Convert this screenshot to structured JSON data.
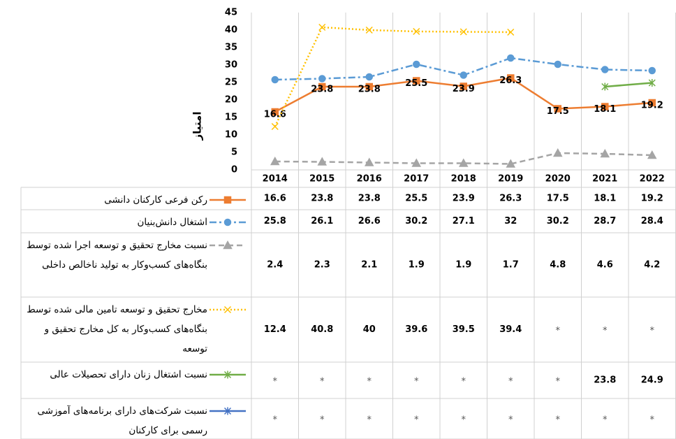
{
  "chart_data": {
    "type": "line",
    "y_label": "امتیاز",
    "categories": [
      "2014",
      "2015",
      "2016",
      "2017",
      "2018",
      "2019",
      "2020",
      "2021",
      "2022"
    ],
    "ylim": [
      0,
      45
    ],
    "yticks": [
      0,
      5,
      10,
      15,
      20,
      25,
      30,
      35,
      40,
      45
    ],
    "grid": false,
    "missing_label": "*",
    "series": [
      {
        "name": "رکن فرعی کارکنان دانشی",
        "color": "#ed7d31",
        "line_style": "solid",
        "marker": "square",
        "data_labels": true,
        "values": [
          16.6,
          23.8,
          23.8,
          25.5,
          23.9,
          26.3,
          17.5,
          18.1,
          19.2
        ]
      },
      {
        "name": "اشتغال دانش‌بنیان",
        "color": "#5b9bd5",
        "line_style": "dash-dot",
        "marker": "circle",
        "data_labels": false,
        "values": [
          25.8,
          26.1,
          26.6,
          30.2,
          27.1,
          32,
          30.2,
          28.7,
          28.4
        ]
      },
      {
        "name": "نسبت مخارج تحقیق و توسعه اجرا شده توسط بنگاه‌های کسب‌وکار به تولید ناخالص داخلی",
        "color": "#a5a5a5",
        "line_style": "dashed",
        "marker": "triangle",
        "data_labels": false,
        "values": [
          2.4,
          2.3,
          2.1,
          1.9,
          1.9,
          1.7,
          4.8,
          4.6,
          4.2
        ]
      },
      {
        "name": "مخارج تحقیق و توسعه تامین مالی شده توسط بنگاه‌های کسب‌وکار به کل مخارج تحقیق و توسعه",
        "color": "#ffc000",
        "line_style": "dotted",
        "marker": "x",
        "data_labels": false,
        "values": [
          12.4,
          40.8,
          40,
          39.6,
          39.5,
          39.4,
          null,
          null,
          null
        ]
      },
      {
        "name": "نسبت اشتغال زنان دارای تحصیلات عالی",
        "color": "#70ad47",
        "line_style": "solid",
        "marker": "star",
        "data_labels": false,
        "values": [
          null,
          null,
          null,
          null,
          null,
          null,
          null,
          23.8,
          24.9
        ]
      },
      {
        "name": "نسبت شرکت‌های دارای برنامه‌های آموزشی رسمی برای کارکنان",
        "color": "#4472c4",
        "line_style": "solid",
        "marker": "star",
        "data_labels": false,
        "values": [
          null,
          null,
          null,
          null,
          null,
          null,
          null,
          null,
          null
        ]
      }
    ]
  }
}
